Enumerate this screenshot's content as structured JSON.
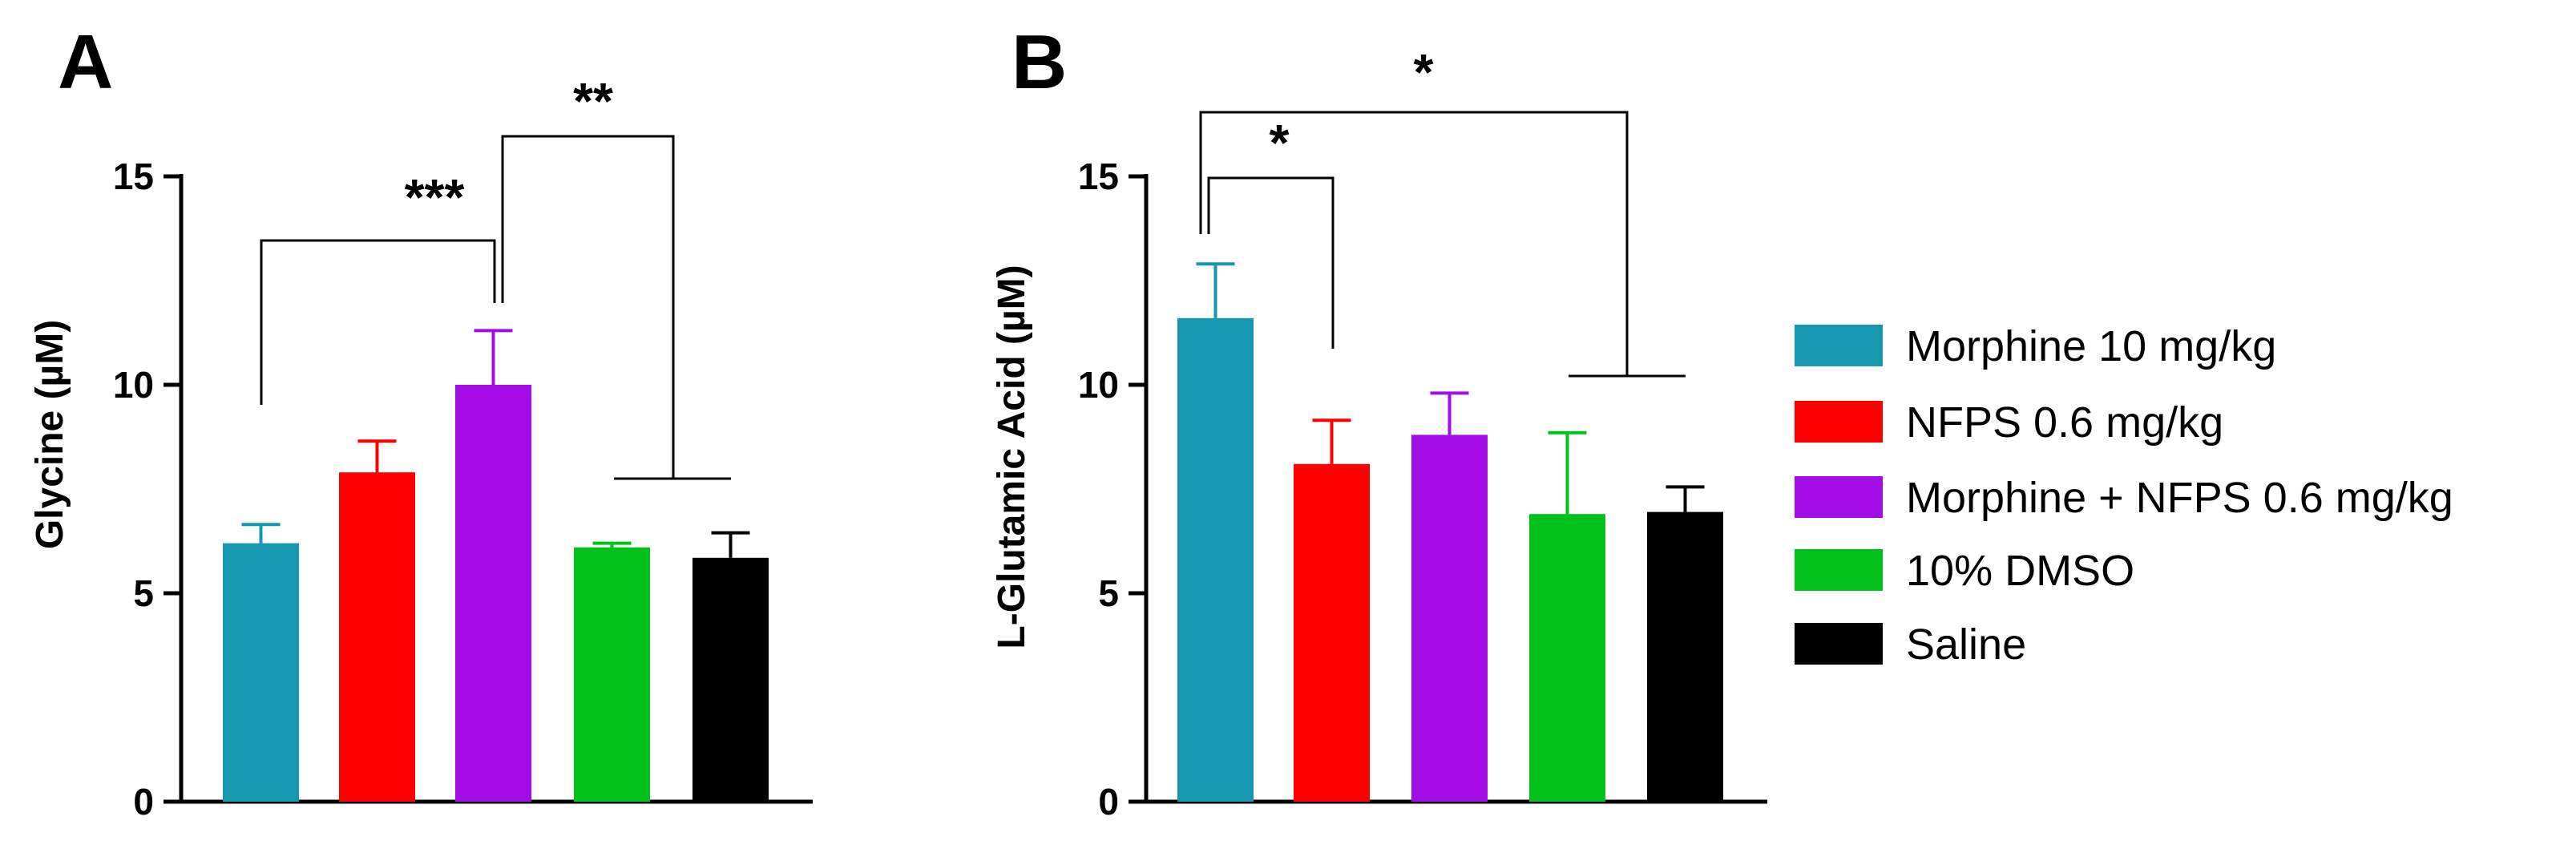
{
  "chart_data": [
    {
      "type": "bar",
      "panel": "A",
      "title": "",
      "xlabel": "",
      "ylabel": "Glycine (µM)",
      "ylim": [
        0,
        15
      ],
      "yticks": [
        "0",
        "5",
        "10",
        "15"
      ],
      "categories": [
        "Morphine 10 mg/kg",
        "NFPS 0.6 mg/kg",
        "Morphine + NFPS 0.6 mg/kg",
        "10% DMSO",
        "Saline"
      ],
      "values": [
        6.2,
        7.9,
        10.0,
        6.1,
        5.85
      ],
      "errors": [
        0.45,
        0.75,
        1.3,
        0.1,
        0.6
      ],
      "significance": [
        {
          "label": "***",
          "from": 0,
          "to": 2
        },
        {
          "label": "**",
          "from": 2,
          "to": [
            3,
            4
          ]
        }
      ]
    },
    {
      "type": "bar",
      "panel": "B",
      "title": "",
      "xlabel": "",
      "ylabel": "L-Glutamic Acid (µM)",
      "ylim": [
        0,
        15
      ],
      "yticks": [
        "0",
        "5",
        "10",
        "15"
      ],
      "categories": [
        "Morphine 10 mg/kg",
        "NFPS 0.6 mg/kg",
        "Morphine + NFPS 0.6 mg/kg",
        "10% DMSO",
        "Saline"
      ],
      "values": [
        11.6,
        8.1,
        8.8,
        6.9,
        6.95
      ],
      "errors": [
        1.3,
        1.05,
        1.0,
        1.95,
        0.6
      ],
      "significance": [
        {
          "label": "*",
          "from": 0,
          "to": 1
        },
        {
          "label": "*",
          "from": 0,
          "to": [
            3,
            4
          ]
        }
      ]
    }
  ],
  "colors": [
    "#1398b0",
    "#ff0000",
    "#a30ce6",
    "#00c21b",
    "#000000"
  ],
  "legend": {
    "position": "right",
    "items": [
      {
        "label": "Morphine 10 mg/kg",
        "color": "#1398b0"
      },
      {
        "label": "NFPS 0.6 mg/kg",
        "color": "#ff0000"
      },
      {
        "label": "Morphine + NFPS 0.6 mg/kg",
        "color": "#a30ce6"
      },
      {
        "label": "10% DMSO",
        "color": "#00c21b"
      },
      {
        "label": "Saline",
        "color": "#000000"
      }
    ]
  }
}
